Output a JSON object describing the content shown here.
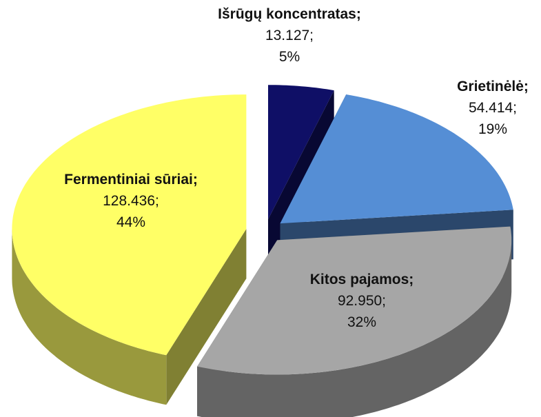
{
  "chart_data": {
    "type": "pie3d",
    "categories": [
      "Išrūgų koncentratas;",
      "Grietinėlė;",
      "Kitos pajamos;",
      "Fermentiniai sūriai;"
    ],
    "values": [
      13.127,
      54.414,
      92.95,
      128.436
    ],
    "value_labels": [
      "13.127;",
      "54.414;",
      "92.950;",
      "128.436;"
    ],
    "percent": [
      5,
      19,
      32,
      44
    ],
    "percent_labels": [
      "5%",
      "19%",
      "32%",
      "44%"
    ],
    "colors": [
      "#0f0f66",
      "#558ed5",
      "#a6a6a6",
      "#ffff66"
    ]
  }
}
